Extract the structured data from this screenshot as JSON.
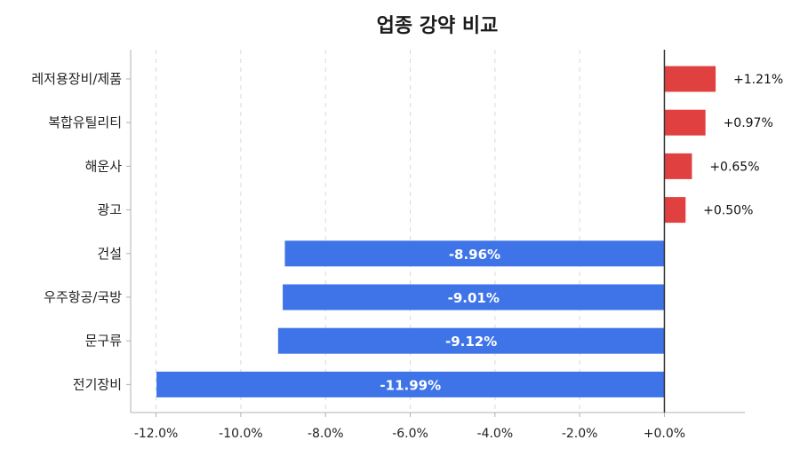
{
  "chart_data": {
    "type": "bar",
    "orientation": "horizontal",
    "title": "업종 강약 비교",
    "categories": [
      "레저용장비/제품",
      "복합유틸리티",
      "해운사",
      "광고",
      "건설",
      "우주항공/국방",
      "문구류",
      "전기장비"
    ],
    "values": [
      1.21,
      0.97,
      0.65,
      0.5,
      -8.96,
      -9.01,
      -9.12,
      -11.99
    ],
    "value_labels": [
      "+1.21%",
      "+0.97%",
      "+0.65%",
      "+0.50%",
      "-8.96%",
      "-9.01%",
      "-9.12%",
      "-11.99%"
    ],
    "xlim": [
      -12.6,
      1.9
    ],
    "xticks": [
      -12,
      -10,
      -8,
      -6,
      -4,
      -2,
      0
    ],
    "xtick_labels": [
      "-12.0%",
      "-10.0%",
      "-8.0%",
      "-6.0%",
      "-4.0%",
      "-2.0%",
      "+0.0%"
    ],
    "grid": "vertical dashed",
    "colors": {
      "positive": "#e04040",
      "negative": "#3e74e8"
    }
  }
}
